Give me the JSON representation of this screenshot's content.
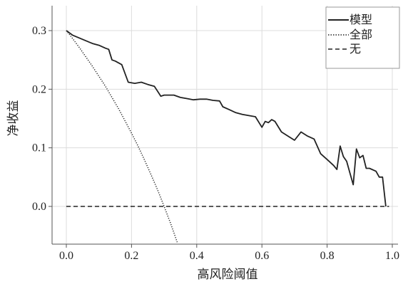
{
  "chart_data": {
    "type": "line",
    "title": "",
    "xlabel": "高风险阈值",
    "ylabel": "净收益",
    "xlim": [
      0,
      1.0
    ],
    "ylim": [
      -0.065,
      0.335
    ],
    "xticks": [
      0.0,
      0.2,
      0.4,
      0.6,
      0.8,
      1.0
    ],
    "xtick_labels": [
      "0.0",
      "0.2",
      "0.4",
      "0.6",
      "0.8",
      "1.0"
    ],
    "yticks": [
      0.0,
      0.1,
      0.2,
      0.3
    ],
    "ytick_labels": [
      "0.0",
      "0.1",
      "0.2",
      "0.3"
    ],
    "grid": true,
    "legend_position": "top-right",
    "series": [
      {
        "name": "模型",
        "style": "solid",
        "color": "#222222",
        "x": [
          0.0,
          0.02,
          0.05,
          0.08,
          0.1,
          0.12,
          0.13,
          0.14,
          0.15,
          0.17,
          0.19,
          0.21,
          0.23,
          0.25,
          0.27,
          0.29,
          0.3,
          0.31,
          0.33,
          0.35,
          0.37,
          0.39,
          0.41,
          0.43,
          0.45,
          0.47,
          0.48,
          0.5,
          0.52,
          0.54,
          0.56,
          0.58,
          0.6,
          0.61,
          0.62,
          0.63,
          0.64,
          0.66,
          0.68,
          0.7,
          0.72,
          0.74,
          0.76,
          0.78,
          0.8,
          0.82,
          0.83,
          0.84,
          0.85,
          0.86,
          0.87,
          0.88,
          0.89,
          0.9,
          0.91,
          0.92,
          0.93,
          0.95,
          0.96,
          0.97,
          0.98
        ],
        "y": [
          0.3,
          0.292,
          0.285,
          0.278,
          0.275,
          0.27,
          0.268,
          0.25,
          0.248,
          0.242,
          0.212,
          0.21,
          0.212,
          0.208,
          0.205,
          0.188,
          0.19,
          0.19,
          0.19,
          0.186,
          0.184,
          0.182,
          0.183,
          0.183,
          0.181,
          0.18,
          0.17,
          0.165,
          0.16,
          0.157,
          0.155,
          0.153,
          0.135,
          0.145,
          0.143,
          0.148,
          0.145,
          0.127,
          0.12,
          0.113,
          0.127,
          0.12,
          0.115,
          0.09,
          0.08,
          0.07,
          0.063,
          0.103,
          0.085,
          0.077,
          0.057,
          0.037,
          0.098,
          0.083,
          0.087,
          0.065,
          0.065,
          0.06,
          0.05,
          0.05,
          0.0
        ]
      },
      {
        "name": "全部",
        "style": "dotted",
        "color": "#222222",
        "x": [
          0.0,
          0.02,
          0.04,
          0.06,
          0.08,
          0.1,
          0.12,
          0.14,
          0.16,
          0.18,
          0.2,
          0.22,
          0.24,
          0.26,
          0.28,
          0.3,
          0.32,
          0.34
        ],
        "y": [
          0.3,
          0.286,
          0.271,
          0.255,
          0.239,
          0.222,
          0.205,
          0.186,
          0.167,
          0.146,
          0.125,
          0.103,
          0.079,
          0.054,
          0.028,
          0.0,
          -0.029,
          -0.061
        ]
      },
      {
        "name": "无",
        "style": "dashed",
        "color": "#222222",
        "x": [
          0.0,
          0.99
        ],
        "y": [
          0.0,
          0.0
        ]
      }
    ]
  }
}
